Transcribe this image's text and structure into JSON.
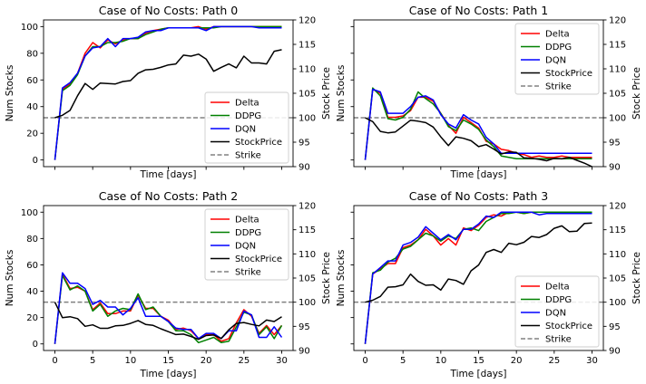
{
  "colors": {
    "Delta": "#ff0000",
    "DDPG": "#008000",
    "DQN": "#0000ff",
    "StockPrice": "#000000",
    "Strike": "#808080"
  },
  "chart_data": [
    {
      "type": "line",
      "title": "Case of No Costs: Path 0",
      "xlabel": "Time [days]",
      "ylabel": "Num Stocks",
      "ylabel_right": "Stock Price",
      "xlim": [
        -1.5,
        31.5
      ],
      "ylim": [
        -5,
        105
      ],
      "ylim_right": [
        90,
        120
      ],
      "xticks": [],
      "yticks": [
        0,
        20,
        40,
        60,
        80,
        100
      ],
      "yticks_right": [
        90,
        95,
        100,
        105,
        110,
        115,
        120
      ],
      "show_left_labels": true,
      "legend_loc": "lower-right",
      "strike": 100,
      "x": [
        0,
        1,
        2,
        3,
        4,
        5,
        6,
        7,
        8,
        9,
        10,
        11,
        12,
        13,
        14,
        15,
        16,
        17,
        18,
        19,
        20,
        21,
        22,
        23,
        24,
        25,
        26,
        27,
        28,
        29,
        30
      ],
      "series": [
        {
          "name": "Delta",
          "axis": "left",
          "values": [
            0,
            53,
            57,
            65,
            80,
            88,
            84,
            90,
            87,
            90,
            91,
            91,
            95,
            97,
            98,
            99,
            99,
            99,
            99,
            100,
            98,
            100,
            100,
            100,
            100,
            100,
            100,
            100,
            100,
            100,
            100
          ]
        },
        {
          "name": "DDPG",
          "axis": "left",
          "values": [
            0,
            52,
            56,
            64,
            78,
            85,
            85,
            88,
            88,
            89,
            91,
            91,
            94,
            96,
            98,
            99,
            99,
            99,
            99,
            99,
            99,
            99,
            100,
            100,
            100,
            100,
            100,
            100,
            100,
            100,
            100
          ]
        },
        {
          "name": "DQN",
          "axis": "left",
          "values": [
            0,
            54,
            58,
            65,
            78,
            84,
            85,
            91,
            85,
            91,
            91,
            92,
            96,
            97,
            97,
            99,
            99,
            99,
            99,
            99,
            97,
            100,
            100,
            100,
            100,
            100,
            100,
            99,
            99,
            99,
            99
          ]
        },
        {
          "name": "StockPrice",
          "axis": "right",
          "values": [
            100,
            100.5,
            101.5,
            104.5,
            107,
            105.8,
            107.1,
            107,
            106.9,
            107.4,
            107.6,
            109.1,
            109.8,
            109.9,
            110.3,
            110.8,
            111,
            112.8,
            112.6,
            113,
            112,
            109.5,
            110.3,
            111,
            110.2,
            112.6,
            111.2,
            111.2,
            111,
            113.6,
            113.9
          ]
        }
      ]
    },
    {
      "type": "line",
      "title": "Case of No Costs: Path 1",
      "xlabel": "Time [days]",
      "ylabel": "Num Stocks",
      "ylabel_right": "Stock Price",
      "xlim": [
        -1.5,
        31.5
      ],
      "ylim": [
        -5,
        105
      ],
      "ylim_right": [
        90,
        120
      ],
      "xticks": [],
      "yticks": [
        0,
        20,
        40,
        60,
        80,
        100
      ],
      "yticks_right": [
        90,
        95,
        100,
        105,
        110,
        115,
        120
      ],
      "show_left_labels": false,
      "legend_loc": "upper-right",
      "strike": 100,
      "x": [
        0,
        1,
        2,
        3,
        4,
        5,
        6,
        7,
        8,
        9,
        10,
        11,
        12,
        13,
        14,
        15,
        16,
        17,
        18,
        19,
        20,
        21,
        22,
        23,
        24,
        25,
        26,
        27,
        28,
        29,
        30
      ],
      "series": [
        {
          "name": "Delta",
          "axis": "left",
          "values": [
            0,
            53,
            50,
            32,
            32,
            33,
            37,
            47,
            47,
            44,
            35,
            26,
            20,
            32,
            28,
            24,
            14,
            12,
            8,
            7,
            5,
            4,
            2,
            3,
            2,
            2,
            3,
            2,
            2,
            2,
            2
          ]
        },
        {
          "name": "DDPG",
          "axis": "left",
          "values": [
            0,
            54,
            48,
            31,
            30,
            32,
            38,
            51,
            46,
            42,
            35,
            25,
            22,
            30,
            27,
            23,
            15,
            10,
            3,
            2,
            1,
            1,
            1,
            1,
            1,
            1,
            1,
            1,
            1,
            1,
            1
          ]
        },
        {
          "name": "DQN",
          "axis": "left",
          "values": [
            0,
            53,
            51,
            35,
            35,
            35,
            40,
            47,
            48,
            45,
            34,
            27,
            24,
            34,
            30,
            27,
            17,
            12,
            5,
            5,
            5,
            5,
            5,
            5,
            5,
            5,
            5,
            5,
            5,
            5,
            5
          ]
        },
        {
          "name": "StockPrice",
          "axis": "right",
          "values": [
            100,
            99.2,
            97.2,
            96.9,
            97.1,
            98.3,
            99.5,
            99.3,
            99,
            98.1,
            96.1,
            94.3,
            96.1,
            95.8,
            95.3,
            94.1,
            94.5,
            93.6,
            92.6,
            93,
            92.9,
            91.8,
            91.7,
            91.5,
            91.2,
            91.7,
            91.6,
            91.9,
            91.3,
            90.7,
            90
          ]
        }
      ]
    },
    {
      "type": "line",
      "title": "Case of No Costs: Path 2",
      "xlabel": "Time [days]",
      "ylabel": "Num Stocks",
      "ylabel_right": "Stock Price",
      "xlim": [
        -1.5,
        31.5
      ],
      "ylim": [
        -5,
        105
      ],
      "ylim_right": [
        90,
        120
      ],
      "xticks": [
        0,
        5,
        10,
        15,
        20,
        25,
        30
      ],
      "yticks": [
        0,
        20,
        40,
        60,
        80,
        100
      ],
      "yticks_right": [
        90,
        95,
        100,
        105,
        110,
        115,
        120
      ],
      "show_left_labels": true,
      "legend_loc": "upper-right",
      "strike": 100,
      "x": [
        0,
        1,
        2,
        3,
        4,
        5,
        6,
        7,
        8,
        9,
        10,
        11,
        12,
        13,
        14,
        15,
        16,
        17,
        18,
        19,
        20,
        21,
        22,
        23,
        24,
        25,
        26,
        27,
        28,
        29,
        30
      ],
      "series": [
        {
          "name": "Delta",
          "axis": "left",
          "values": [
            0,
            53,
            42,
            43,
            40,
            26,
            31,
            23,
            23,
            25,
            25,
            37,
            27,
            27,
            21,
            18,
            11,
            12,
            10,
            4,
            7,
            7,
            2,
            4,
            16,
            26,
            21,
            8,
            14,
            7,
            14
          ]
        },
        {
          "name": "DDPG",
          "axis": "left",
          "values": [
            0,
            52,
            41,
            44,
            40,
            25,
            30,
            21,
            25,
            27,
            26,
            38,
            26,
            28,
            21,
            17,
            10,
            10,
            7,
            1,
            3,
            5,
            1,
            2,
            13,
            24,
            22,
            7,
            13,
            4,
            14
          ]
        },
        {
          "name": "DQN",
          "axis": "left",
          "values": [
            0,
            54,
            46,
            46,
            42,
            30,
            33,
            28,
            28,
            22,
            27,
            35,
            21,
            21,
            21,
            17,
            12,
            11,
            11,
            4,
            8,
            8,
            4,
            10,
            10,
            25,
            22,
            5,
            5,
            13,
            5
          ]
        },
        {
          "name": "StockPrice",
          "axis": "right",
          "values": [
            100,
            96.8,
            97,
            96.6,
            95,
            95.3,
            94.6,
            94.6,
            95.1,
            95.2,
            95.6,
            96.2,
            95.4,
            95.2,
            94.5,
            93.9,
            93.3,
            93.4,
            92.9,
            92.3,
            93.1,
            93.2,
            92.5,
            94.3,
            95.6,
            95.8,
            95.4,
            95.1,
            96.3,
            96,
            97
          ]
        }
      ]
    },
    {
      "type": "line",
      "title": "Case of No Costs: Path 3",
      "xlabel": "Time [days]",
      "ylabel": "Num Stocks",
      "ylabel_right": "Stock Price",
      "xlim": [
        -1.5,
        31.5
      ],
      "ylim": [
        -5,
        105
      ],
      "ylim_right": [
        90,
        120
      ],
      "xticks": [
        0,
        5,
        10,
        15,
        20,
        25,
        30
      ],
      "yticks": [
        0,
        20,
        40,
        60,
        80,
        100
      ],
      "yticks_right": [
        90,
        95,
        100,
        105,
        110,
        115,
        120
      ],
      "show_left_labels": false,
      "legend_loc": "lower-right",
      "strike": 100,
      "x": [
        0,
        1,
        2,
        3,
        4,
        5,
        6,
        7,
        8,
        9,
        10,
        11,
        12,
        13,
        14,
        15,
        16,
        17,
        18,
        19,
        20,
        21,
        22,
        23,
        24,
        25,
        26,
        27,
        28,
        29,
        30
      ],
      "series": [
        {
          "name": "Delta",
          "axis": "left",
          "values": [
            0,
            53,
            57,
            61,
            61,
            73,
            75,
            79,
            87,
            82,
            75,
            80,
            75,
            88,
            86,
            90,
            96,
            98,
            97,
            100,
            100,
            99,
            100,
            100,
            100,
            100,
            100,
            100,
            100,
            100,
            100
          ]
        },
        {
          "name": "DDPG",
          "axis": "left",
          "values": [
            0,
            54,
            56,
            62,
            65,
            72,
            74,
            79,
            84,
            82,
            78,
            82,
            80,
            87,
            88,
            86,
            93,
            96,
            99,
            99,
            100,
            99,
            100,
            100,
            100,
            100,
            100,
            100,
            100,
            100,
            100
          ]
        },
        {
          "name": "DQN",
          "axis": "left",
          "values": [
            0,
            53,
            58,
            63,
            63,
            75,
            77,
            81,
            89,
            84,
            79,
            83,
            79,
            87,
            87,
            91,
            97,
            96,
            100,
            100,
            100,
            100,
            100,
            98,
            99,
            99,
            99,
            99,
            99,
            99,
            99
          ]
        },
        {
          "name": "StockPrice",
          "axis": "right",
          "values": [
            100,
            100.4,
            101.2,
            103.1,
            103.2,
            103.6,
            105.8,
            104.3,
            103.5,
            103.6,
            102.5,
            104.8,
            104.5,
            103.7,
            106.5,
            107.7,
            110.3,
            110.9,
            110.3,
            112.2,
            111.9,
            112.4,
            113.6,
            113.4,
            114,
            115.3,
            115.8,
            114.6,
            114.7,
            116.3,
            116.4
          ]
        }
      ]
    }
  ]
}
